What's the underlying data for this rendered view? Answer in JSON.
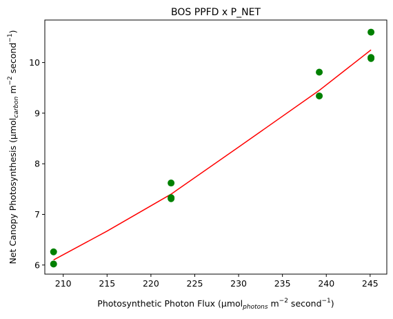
{
  "chart_data": {
    "type": "scatter",
    "title": "BOS PPFD x P_NET",
    "xlabel": {
      "main": "Photosynthetic Photon Flux (μmol",
      "sub": "photons",
      "mid": " m",
      "sup1": "−2",
      "mid2": " second",
      "sup2": "−1",
      "end": ")"
    },
    "ylabel": {
      "main": "Net Canopy Photosynthesis (μmol",
      "sub": "carbon",
      "mid": " m",
      "sup1": "−2",
      "mid2": " second",
      "sup2": "−1",
      "end": ")"
    },
    "xlim": [
      207.9,
      246.9
    ],
    "ylim": [
      5.82,
      10.84
    ],
    "xticks": [
      210,
      215,
      220,
      225,
      230,
      235,
      240,
      245
    ],
    "yticks": [
      6,
      7,
      8,
      9,
      10
    ],
    "points": [
      {
        "x": 208.9,
        "y": 6.26
      },
      {
        "x": 208.9,
        "y": 6.02
      },
      {
        "x": 222.3,
        "y": 7.62
      },
      {
        "x": 222.3,
        "y": 7.33
      },
      {
        "x": 222.3,
        "y": 7.31
      },
      {
        "x": 239.2,
        "y": 9.81
      },
      {
        "x": 239.2,
        "y": 9.34
      },
      {
        "x": 245.1,
        "y": 10.6
      },
      {
        "x": 245.1,
        "y": 10.1
      },
      {
        "x": 245.1,
        "y": 10.08
      }
    ],
    "fit_line": [
      {
        "x": 208.9,
        "y": 6.1
      },
      {
        "x": 215.0,
        "y": 6.67
      },
      {
        "x": 222.3,
        "y": 7.4
      },
      {
        "x": 230.0,
        "y": 8.33
      },
      {
        "x": 239.2,
        "y": 9.45
      },
      {
        "x": 245.1,
        "y": 10.25
      }
    ],
    "colors": {
      "points": "#008000",
      "fit_line": "#ff0000"
    },
    "grid": false,
    "legend": "none"
  }
}
